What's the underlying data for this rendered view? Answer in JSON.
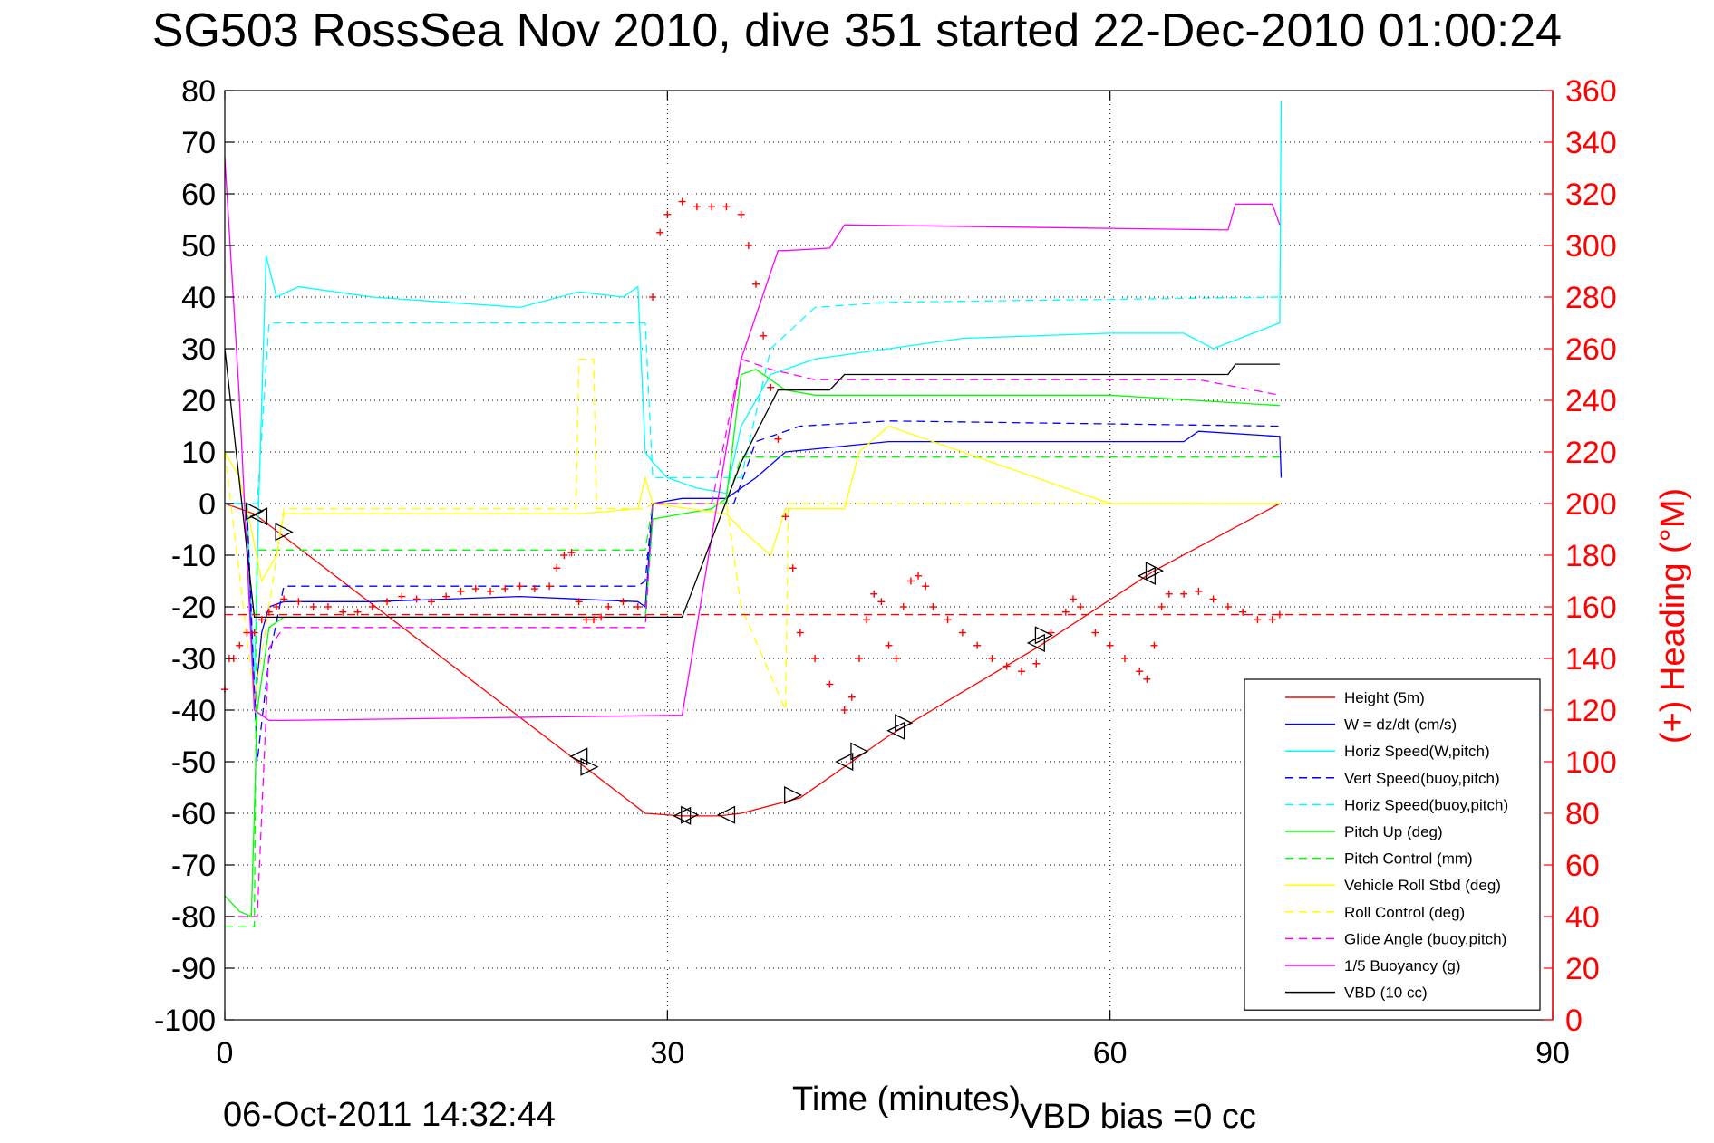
{
  "title": "SG503 RossSea Nov 2010, dive 351 started 22-Dec-2010 01:00:24",
  "footer": {
    "timestamp": "06-Oct-2011 14:32:44",
    "vbd_bias": "VBD bias =0 cc"
  },
  "colors": {
    "height": "#ff0000",
    "w": "#0000ff",
    "horiz_speed": "#00ffff",
    "pitch": "#00ff00",
    "roll": "#ffff00",
    "glide": "#ff00ff",
    "vbd": "#000000",
    "right_axis": "#ff0000"
  },
  "chart_data": {
    "type": "line",
    "title": "SG503 RossSea Nov 2010, dive 351 started 22-Dec-2010 01:00:24",
    "xlabel": "Time (minutes)",
    "ylabel": "",
    "y2label": "(+) Heading (°M)",
    "xlim": [
      0,
      90
    ],
    "ylim": [
      -100,
      80
    ],
    "y2lim": [
      0,
      360
    ],
    "xticks": [
      "0",
      "30",
      "60",
      "90"
    ],
    "yticks": [
      "80",
      "70",
      "60",
      "50",
      "40",
      "30",
      "20",
      "10",
      "0",
      "-10",
      "-20",
      "-30",
      "-40",
      "-50",
      "-60",
      "-70",
      "-80",
      "-90",
      "-100"
    ],
    "y2ticks": [
      "360",
      "340",
      "320",
      "300",
      "280",
      "260",
      "240",
      "220",
      "200",
      "180",
      "160",
      "140",
      "120",
      "100",
      "80",
      "60",
      "40",
      "20",
      "0"
    ],
    "grid": true,
    "legend_position": "bottom-right",
    "series": [
      {
        "name": "Height (5m)",
        "color": "#ff0000",
        "style": "solid",
        "x": [
          0,
          2,
          28.5,
          31,
          33.5,
          35,
          39,
          45,
          55,
          63,
          71.5
        ],
        "y": [
          0,
          -2,
          -60,
          -60.5,
          -60.5,
          -60,
          -57,
          -45,
          -28,
          -13,
          0
        ]
      },
      {
        "name": "W = dz/dt (cm/s)",
        "color": "#0000ff",
        "style": "solid",
        "x": [
          0,
          1.5,
          2,
          2.5,
          3,
          4,
          10,
          20,
          28,
          28.5,
          29,
          31,
          34,
          36,
          38,
          45,
          55,
          65,
          66,
          71.5,
          71.6
        ],
        "y": [
          0,
          0,
          -40,
          -25,
          -20,
          -19,
          -19,
          -18,
          -19,
          -20,
          0,
          1,
          1,
          5,
          10,
          12,
          12,
          12,
          14,
          13,
          5
        ]
      },
      {
        "name": "Horiz Speed(W,pitch)",
        "color": "#00ffff",
        "style": "solid",
        "x": [
          0,
          1.5,
          2,
          2.3,
          2.8,
          3.5,
          5,
          10,
          15,
          20,
          24,
          27,
          28,
          28.5,
          29,
          30,
          32,
          34,
          35,
          37,
          40,
          45,
          50,
          60,
          65,
          67,
          71.5,
          71.6
        ],
        "y": [
          0,
          0,
          -35,
          0,
          48,
          40,
          42,
          40,
          39,
          38,
          41,
          40,
          42,
          10,
          8,
          5,
          3,
          2,
          15,
          25,
          28,
          30,
          32,
          33,
          33,
          30,
          35,
          78
        ]
      },
      {
        "name": "Vert Speed(buoy,pitch)",
        "color": "#0000ff",
        "style": "dashed",
        "x": [
          0,
          1.5,
          2.2,
          3,
          4,
          28,
          28.5,
          29,
          33,
          34.5,
          36,
          39,
          45,
          71.5
        ],
        "y": [
          0,
          0,
          -50,
          -30,
          -16,
          -16,
          -15,
          0,
          0,
          0,
          12,
          15,
          16,
          15
        ]
      },
      {
        "name": "Horiz Speed(buoy,pitch)",
        "color": "#00ffff",
        "style": "dashed",
        "x": [
          0,
          1.5,
          2.2,
          3,
          4,
          28,
          28.5,
          29,
          33,
          35,
          37,
          40,
          45,
          71.5
        ],
        "y": [
          0,
          0,
          0,
          35,
          35,
          35,
          35,
          5,
          5,
          5,
          30,
          38,
          39,
          40
        ]
      },
      {
        "name": "Pitch Up (deg)",
        "color": "#00ff00",
        "style": "solid",
        "x": [
          0,
          1,
          1.8,
          2.2,
          3,
          4,
          28,
          28.5,
          29,
          31,
          33,
          34,
          35,
          36,
          38,
          40,
          60,
          71.5
        ],
        "y": [
          -76,
          -79,
          -80,
          -40,
          -24,
          -22,
          -22,
          -22,
          -3,
          -2,
          -1,
          1,
          25,
          26,
          22,
          21,
          21,
          19
        ]
      },
      {
        "name": "Pitch Control (mm)",
        "color": "#00ff00",
        "style": "dashed",
        "x": [
          0,
          2,
          2.2,
          4,
          28,
          28.5,
          29,
          33.5,
          34,
          35,
          38,
          71.5
        ],
        "y": [
          -82,
          -82,
          -9,
          -9,
          -9,
          -9,
          0,
          0,
          0,
          9,
          9,
          9
        ]
      },
      {
        "name": "Vehicle Roll Stbd (deg)",
        "color": "#ffff00",
        "style": "solid",
        "x": [
          0,
          1,
          1.8,
          2.5,
          3.5,
          4,
          24,
          28,
          28.5,
          29,
          34,
          35,
          37,
          38,
          42,
          43,
          45,
          60,
          71.5
        ],
        "y": [
          10,
          5,
          -5,
          -15,
          -10,
          -2,
          -2,
          -1,
          5,
          0,
          -2,
          -5,
          -10,
          -1,
          -1,
          10,
          15,
          0,
          0
        ]
      },
      {
        "name": "Roll Control (deg)",
        "color": "#ffff00",
        "style": "dashed",
        "x": [
          0,
          2,
          3,
          4,
          23.8,
          24,
          25,
          25.2,
          28,
          28.5,
          29,
          34,
          35,
          38,
          38.2,
          71.5
        ],
        "y": [
          10,
          -38,
          -20,
          -1,
          -1,
          28,
          28,
          -1,
          -1,
          -1,
          0,
          0,
          -20,
          -40,
          0,
          0
        ]
      },
      {
        "name": "Glide Angle (buoy,pitch)",
        "color": "#ff00ff",
        "style": "dashed",
        "x": [
          0,
          1.8,
          2.2,
          3,
          4,
          28,
          28.5,
          29,
          33,
          35,
          37,
          40,
          66,
          71.5
        ],
        "y": [
          -80,
          -80,
          -80,
          -28,
          -24,
          -24,
          -24,
          0,
          0,
          28,
          26,
          24,
          24,
          21
        ]
      },
      {
        "name": "1/5 Buoyancy (g)",
        "color": "#ff00ff",
        "style": "solid",
        "x": [
          0,
          1,
          2,
          3,
          4,
          31,
          35,
          37.5,
          38,
          41,
          42,
          68,
          68.5,
          71,
          71.5
        ],
        "y": [
          67,
          20,
          -40,
          -42,
          -42,
          -41,
          28,
          49,
          49,
          49.5,
          54,
          53,
          58,
          58,
          54
        ]
      },
      {
        "name": "VBD (10 cc)",
        "color": "#000000",
        "style": "solid",
        "x": [
          0,
          2,
          4,
          31,
          35,
          37.5,
          38,
          41,
          42,
          68,
          68.5,
          71.5
        ],
        "y": [
          30,
          -22,
          -22,
          -22,
          8,
          22,
          22,
          22,
          25,
          25,
          27,
          27
        ]
      }
    ],
    "heading_series": {
      "name": "(+) Heading",
      "axis": "right",
      "marker": "+",
      "color": "#ff0000",
      "x": [
        0,
        0.3,
        0.6,
        1,
        1.5,
        2,
        2.5,
        3,
        3.5,
        4,
        5,
        6,
        7,
        8,
        9,
        10,
        11,
        12,
        13,
        14,
        15,
        16,
        17,
        18,
        19,
        20,
        21,
        22,
        22.5,
        23,
        23.5,
        24,
        24.5,
        25,
        25.5,
        26,
        27,
        28,
        29,
        29.5,
        30,
        31,
        32,
        33,
        34,
        35,
        35.5,
        36,
        36.5,
        37,
        37.5,
        38,
        38.5,
        39,
        40,
        41,
        42,
        42.5,
        43,
        43.5,
        44,
        44.5,
        45,
        45.5,
        46,
        46.5,
        47,
        47.5,
        48,
        49,
        50,
        51,
        52,
        53,
        54,
        55,
        56,
        57,
        57.5,
        58,
        59,
        60,
        61,
        62,
        62.5,
        63,
        63.5,
        64,
        65,
        66,
        67,
        68,
        69,
        70,
        71,
        71.5
      ],
      "y": [
        128,
        140,
        140,
        145,
        150,
        150,
        155,
        158,
        160,
        163,
        162,
        160,
        160,
        158,
        158,
        160,
        162,
        164,
        163,
        162,
        164,
        166,
        167,
        166,
        167,
        168,
        167,
        168,
        175,
        180,
        181,
        162,
        155,
        155,
        156,
        160,
        162,
        160,
        280,
        305,
        312,
        317,
        315,
        315,
        315,
        312,
        300,
        285,
        265,
        245,
        225,
        195,
        175,
        150,
        140,
        130,
        120,
        125,
        140,
        155,
        165,
        162,
        145,
        140,
        160,
        170,
        172,
        168,
        160,
        155,
        150,
        145,
        140,
        137,
        135,
        138,
        150,
        158,
        163,
        160,
        150,
        145,
        140,
        135,
        132,
        145,
        160,
        165,
        165,
        166,
        163,
        160,
        158,
        155,
        155,
        157
      ]
    },
    "reference_line": {
      "axis": "right",
      "value": 157,
      "color": "#ff0000",
      "style": "dashed"
    },
    "markers": {
      "color": "#000000",
      "shape": "triangle",
      "x": [
        2,
        2.3,
        4,
        24,
        24.7,
        31,
        31.5,
        34,
        38.5,
        42,
        43,
        45.5,
        46,
        55,
        55.5,
        62.5,
        63
      ],
      "y": [
        -1.5,
        -2.5,
        -5.5,
        -49,
        -51,
        -60.5,
        -60.3,
        -60.3,
        -56.5,
        -50,
        -48,
        -44,
        -42.5,
        -27,
        -25.5,
        -14,
        -13
      ]
    }
  }
}
